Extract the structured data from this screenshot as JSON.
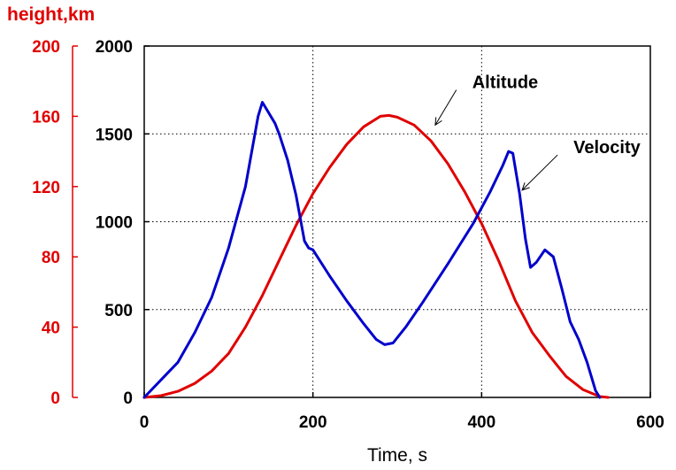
{
  "chart_data": {
    "type": "line",
    "xlabel": "Time, s",
    "xlim": [
      0,
      600
    ],
    "x_ticks": [
      "0",
      "200",
      "400",
      "600"
    ],
    "y_left_label": "height,km",
    "y_left_lim": [
      0,
      200
    ],
    "y_left_ticks": [
      "0",
      "40",
      "80",
      "120",
      "160",
      "200"
    ],
    "y_right_lim": [
      0,
      2000
    ],
    "y_right_ticks": [
      "0",
      "500",
      "1000",
      "1500",
      "2000"
    ],
    "grid": true,
    "colors": {
      "altitude": "#e00000",
      "velocity": "#0000cc",
      "axis_left": "#e00000"
    },
    "series": [
      {
        "name": "Altitude",
        "axis": "left",
        "points": [
          [
            0,
            0
          ],
          [
            20,
            1
          ],
          [
            40,
            3.5
          ],
          [
            60,
            8
          ],
          [
            80,
            15
          ],
          [
            100,
            25
          ],
          [
            120,
            40
          ],
          [
            140,
            58
          ],
          [
            160,
            78
          ],
          [
            180,
            98
          ],
          [
            200,
            116
          ],
          [
            220,
            131
          ],
          [
            240,
            144
          ],
          [
            260,
            154
          ],
          [
            280,
            160
          ],
          [
            290,
            160.5
          ],
          [
            300,
            159.5
          ],
          [
            320,
            155
          ],
          [
            340,
            146
          ],
          [
            360,
            133
          ],
          [
            380,
            117
          ],
          [
            400,
            99
          ],
          [
            420,
            78
          ],
          [
            440,
            55
          ],
          [
            460,
            37
          ],
          [
            480,
            24
          ],
          [
            500,
            12
          ],
          [
            520,
            4.5
          ],
          [
            540,
            0.5
          ],
          [
            550,
            0
          ]
        ]
      },
      {
        "name": "Velocity",
        "axis": "right",
        "points": [
          [
            0,
            0
          ],
          [
            20,
            100
          ],
          [
            40,
            200
          ],
          [
            60,
            370
          ],
          [
            80,
            570
          ],
          [
            100,
            850
          ],
          [
            120,
            1200
          ],
          [
            135,
            1600
          ],
          [
            140,
            1680
          ],
          [
            155,
            1560
          ],
          [
            160,
            1500
          ],
          [
            170,
            1350
          ],
          [
            180,
            1150
          ],
          [
            190,
            890
          ],
          [
            195,
            850
          ],
          [
            200,
            840
          ],
          [
            220,
            690
          ],
          [
            240,
            550
          ],
          [
            260,
            420
          ],
          [
            275,
            330
          ],
          [
            285,
            300
          ],
          [
            295,
            310
          ],
          [
            310,
            400
          ],
          [
            330,
            540
          ],
          [
            360,
            760
          ],
          [
            390,
            990
          ],
          [
            410,
            1170
          ],
          [
            425,
            1320
          ],
          [
            432,
            1400
          ],
          [
            437,
            1390
          ],
          [
            445,
            1160
          ],
          [
            452,
            900
          ],
          [
            458,
            740
          ],
          [
            465,
            770
          ],
          [
            475,
            840
          ],
          [
            485,
            800
          ],
          [
            495,
            620
          ],
          [
            505,
            430
          ],
          [
            515,
            330
          ],
          [
            525,
            200
          ],
          [
            535,
            40
          ],
          [
            540,
            0
          ]
        ]
      }
    ],
    "annotations": [
      {
        "text": "Altitude",
        "series": "Altitude",
        "point": [
          345,
          155
        ],
        "label_at": [
          370,
          175
        ]
      },
      {
        "text": "Velocity",
        "series": "Velocity",
        "point": [
          448,
          1180
        ],
        "label_at": [
          490,
          1380
        ]
      }
    ]
  }
}
